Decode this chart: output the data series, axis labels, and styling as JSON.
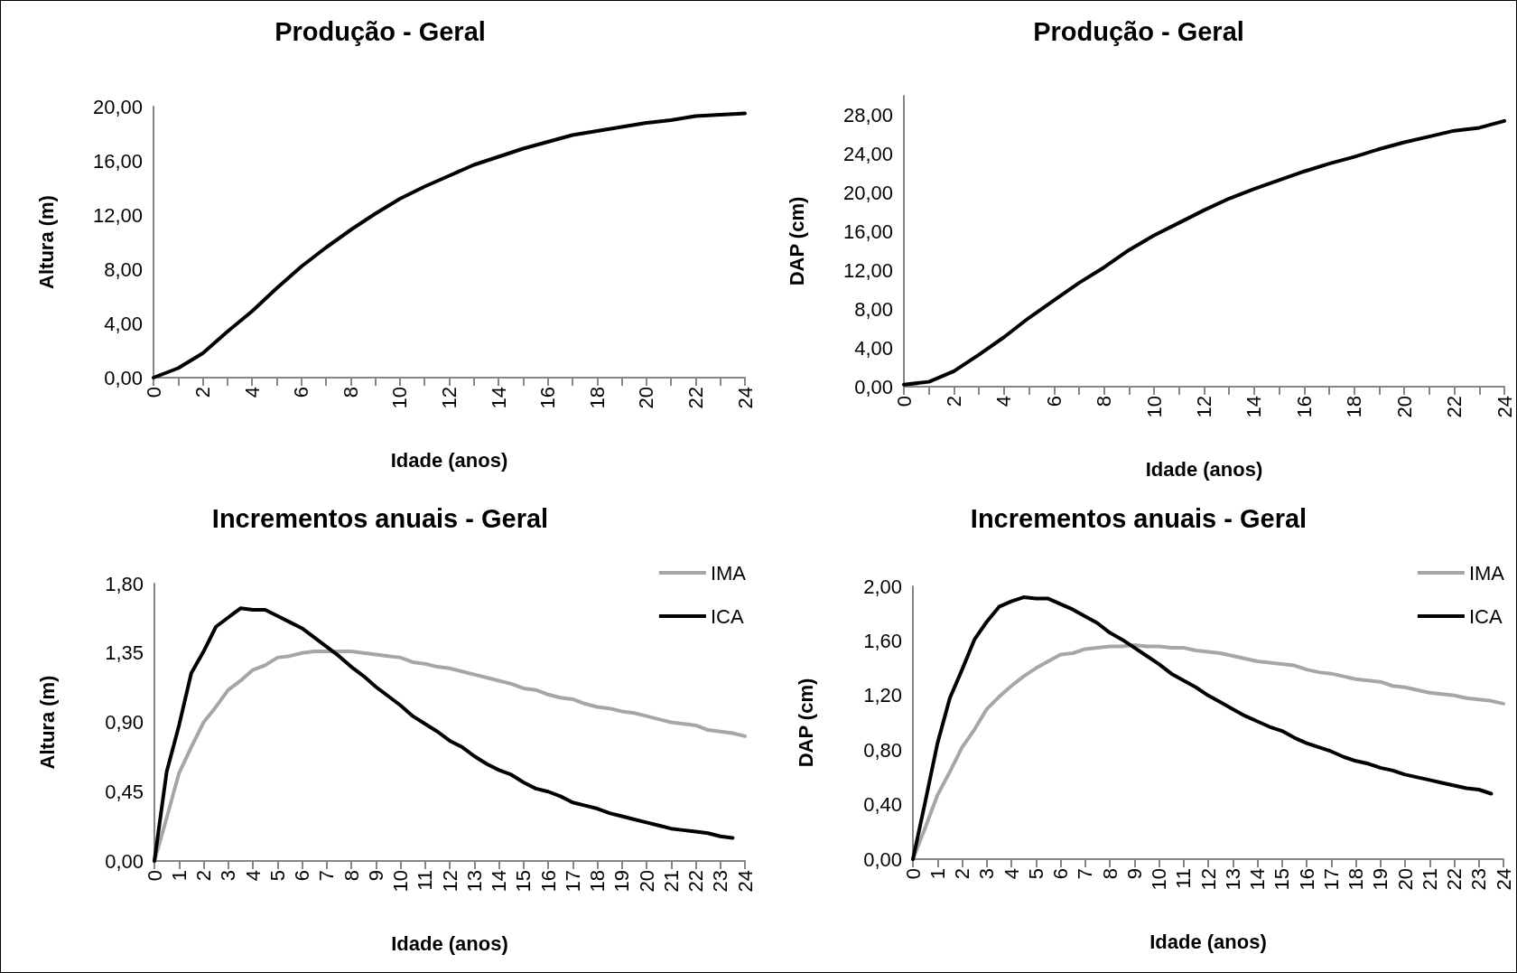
{
  "chart_data": [
    {
      "type": "line",
      "title": "Produção - Geral",
      "xlabel": "Idade (anos)",
      "ylabel": "Altura (m)",
      "x": [
        0,
        1,
        2,
        3,
        4,
        5,
        6,
        7,
        8,
        9,
        10,
        11,
        12,
        13,
        14,
        15,
        16,
        17,
        18,
        19,
        20,
        21,
        22,
        23,
        24
      ],
      "series": [
        {
          "color": "#000000",
          "values": [
            0,
            0.7,
            1.8,
            3.4,
            4.9,
            6.6,
            8.2,
            9.6,
            10.9,
            12.1,
            13.2,
            14.1,
            14.9,
            15.7,
            16.3,
            16.9,
            17.4,
            17.9,
            18.2,
            18.5,
            18.8,
            19.0,
            19.3,
            19.4,
            19.5
          ]
        }
      ],
      "xlim": [
        0,
        24
      ],
      "xticks": [
        0,
        {
          "value": 1,
          "label": null
        },
        2,
        {
          "value": 3,
          "label": null
        },
        4,
        {
          "value": 5,
          "label": null
        },
        6,
        {
          "value": 7,
          "label": null
        },
        8,
        {
          "value": 9,
          "label": null
        },
        10,
        {
          "value": 11,
          "label": null
        },
        12,
        {
          "value": 13,
          "label": null
        },
        14,
        {
          "value": 15,
          "label": null
        },
        16,
        {
          "value": 17,
          "label": null
        },
        18,
        {
          "value": 19,
          "label": null
        },
        20,
        {
          "value": 21,
          "label": null
        },
        22,
        {
          "value": 23,
          "label": null
        },
        24
      ],
      "ylim": [
        0,
        20
      ],
      "yticks": [
        {
          "value": 0,
          "label": "0,00"
        },
        {
          "value": 4,
          "label": "4,00"
        },
        {
          "value": 8,
          "label": "8,00"
        },
        {
          "value": 12,
          "label": "12,00"
        },
        {
          "value": 16,
          "label": "16,00"
        },
        {
          "value": 20,
          "label": "20,00"
        }
      ],
      "grid": false,
      "legend": false,
      "marker": "none",
      "line_style": "solid"
    },
    {
      "type": "line",
      "title": "Produção - Geral",
      "xlabel": "Idade (anos)",
      "ylabel": "DAP (cm)",
      "x": [
        0,
        1,
        2,
        3,
        4,
        5,
        6,
        7,
        8,
        9,
        10,
        11,
        12,
        13,
        14,
        15,
        16,
        17,
        18,
        19,
        20,
        21,
        22,
        23,
        24
      ],
      "series": [
        {
          "color": "#000000",
          "values": [
            0.2,
            0.5,
            1.6,
            3.3,
            5.1,
            7.1,
            8.9,
            10.7,
            12.3,
            14.1,
            15.6,
            16.9,
            18.2,
            19.4,
            20.4,
            21.3,
            22.2,
            23.0,
            23.7,
            24.5,
            25.2,
            25.8,
            26.4,
            26.7,
            27.4
          ]
        }
      ],
      "xlim": [
        0,
        24
      ],
      "xticks": [
        0,
        {
          "value": 1,
          "label": null
        },
        2,
        {
          "value": 3,
          "label": null
        },
        4,
        {
          "value": 5,
          "label": null
        },
        6,
        {
          "value": 7,
          "label": null
        },
        8,
        {
          "value": 9,
          "label": null
        },
        10,
        {
          "value": 11,
          "label": null
        },
        12,
        {
          "value": 13,
          "label": null
        },
        14,
        {
          "value": 15,
          "label": null
        },
        16,
        {
          "value": 17,
          "label": null
        },
        18,
        {
          "value": 19,
          "label": null
        },
        20,
        {
          "value": 21,
          "label": null
        },
        22,
        {
          "value": 23,
          "label": null
        },
        24
      ],
      "ylim": [
        0,
        30
      ],
      "yticks": [
        {
          "value": 0,
          "label": "0,00"
        },
        {
          "value": 4,
          "label": "4,00"
        },
        {
          "value": 8,
          "label": "8,00"
        },
        {
          "value": 12,
          "label": "12,00"
        },
        {
          "value": 16,
          "label": "16,00"
        },
        {
          "value": 20,
          "label": "20,00"
        },
        {
          "value": 24,
          "label": "24,00"
        },
        {
          "value": 28,
          "label": "28,00"
        }
      ],
      "grid": false,
      "legend": false,
      "marker": "none",
      "line_style": "solid"
    },
    {
      "type": "line",
      "title": "Incrementos anuais - Geral",
      "xlabel": "Idade (anos)",
      "ylabel": "Altura (m)",
      "series": [
        {
          "name": "IMA",
          "color": "#a6a6a6",
          "x": [
            0,
            0.5,
            1,
            1.5,
            2,
            2.5,
            3,
            3.5,
            4,
            4.5,
            5,
            5.5,
            6,
            6.5,
            7,
            7.5,
            8,
            8.5,
            9,
            9.5,
            10,
            10.5,
            11,
            11.5,
            12,
            12.5,
            13,
            13.5,
            14,
            14.5,
            15,
            15.5,
            16,
            16.5,
            17,
            17.5,
            18,
            18.5,
            19,
            19.5,
            20,
            20.5,
            21,
            21.5,
            22,
            22.5,
            23,
            23.5,
            24
          ],
          "values": [
            0,
            0.28,
            0.57,
            0.74,
            0.9,
            1.0,
            1.11,
            1.17,
            1.24,
            1.27,
            1.32,
            1.33,
            1.35,
            1.36,
            1.36,
            1.36,
            1.36,
            1.35,
            1.34,
            1.33,
            1.32,
            1.29,
            1.28,
            1.26,
            1.25,
            1.23,
            1.21,
            1.19,
            1.17,
            1.15,
            1.12,
            1.11,
            1.08,
            1.06,
            1.05,
            1.02,
            1.0,
            0.99,
            0.97,
            0.96,
            0.94,
            0.92,
            0.9,
            0.89,
            0.88,
            0.85,
            0.84,
            0.83,
            0.81
          ]
        },
        {
          "name": "ICA",
          "color": "#000000",
          "x": [
            0,
            0.5,
            1,
            1.5,
            2,
            2.5,
            3,
            3.5,
            4,
            4.5,
            5,
            5.5,
            6,
            6.5,
            7,
            7.5,
            8,
            8.5,
            9,
            9.5,
            10,
            10.5,
            11,
            11.5,
            12,
            12.5,
            13,
            13.5,
            14,
            14.5,
            15,
            15.5,
            16,
            16.5,
            17,
            17.5,
            18,
            18.5,
            19,
            19.5,
            20,
            20.5,
            21,
            21.5,
            22,
            22.5,
            23,
            23.5
          ],
          "values": [
            0,
            0.58,
            0.88,
            1.22,
            1.36,
            1.52,
            1.58,
            1.64,
            1.63,
            1.63,
            1.59,
            1.55,
            1.51,
            1.45,
            1.39,
            1.33,
            1.26,
            1.2,
            1.13,
            1.07,
            1.01,
            0.94,
            0.89,
            0.84,
            0.78,
            0.74,
            0.68,
            0.63,
            0.59,
            0.56,
            0.51,
            0.47,
            0.45,
            0.42,
            0.38,
            0.36,
            0.34,
            0.31,
            0.29,
            0.27,
            0.25,
            0.23,
            0.21,
            0.2,
            0.19,
            0.18,
            0.16,
            0.15
          ]
        }
      ],
      "xlim": [
        0,
        24
      ],
      "xticks": [
        0,
        1,
        2,
        3,
        4,
        5,
        6,
        7,
        8,
        9,
        10,
        11,
        12,
        13,
        14,
        15,
        16,
        17,
        18,
        19,
        20,
        21,
        22,
        23,
        24
      ],
      "ylim": [
        0,
        1.8
      ],
      "yticks": [
        {
          "value": 0,
          "label": "0,00"
        },
        {
          "value": 0.45,
          "label": "0,45"
        },
        {
          "value": 0.9,
          "label": "0,90"
        },
        {
          "value": 1.35,
          "label": "1,35"
        },
        {
          "value": 1.8,
          "label": "1,80"
        }
      ],
      "grid": false,
      "legend": "top right",
      "marker": "none",
      "line_style": "solid"
    },
    {
      "type": "line",
      "title": "Incrementos anuais - Geral",
      "xlabel": "Idade (anos)",
      "ylabel": "DAP (cm)",
      "series": [
        {
          "name": "IMA",
          "color": "#a6a6a6",
          "x": [
            0,
            0.5,
            1,
            1.5,
            2,
            2.5,
            3,
            3.5,
            4,
            4.5,
            5,
            5.5,
            6,
            6.5,
            7,
            7.5,
            8,
            8.5,
            9,
            9.5,
            10,
            10.5,
            11,
            11.5,
            12,
            12.5,
            13,
            13.5,
            14,
            14.5,
            15,
            15.5,
            16,
            16.5,
            17,
            17.5,
            18,
            18.5,
            19,
            19.5,
            20,
            20.5,
            21,
            21.5,
            22,
            22.5,
            23,
            23.5,
            24
          ],
          "values": [
            0,
            0.23,
            0.47,
            0.64,
            0.82,
            0.95,
            1.1,
            1.19,
            1.27,
            1.34,
            1.4,
            1.45,
            1.5,
            1.51,
            1.54,
            1.55,
            1.56,
            1.56,
            1.57,
            1.56,
            1.56,
            1.55,
            1.55,
            1.53,
            1.52,
            1.51,
            1.49,
            1.47,
            1.45,
            1.44,
            1.43,
            1.42,
            1.39,
            1.37,
            1.36,
            1.34,
            1.32,
            1.31,
            1.3,
            1.27,
            1.26,
            1.24,
            1.22,
            1.21,
            1.2,
            1.18,
            1.17,
            1.16,
            1.14
          ]
        },
        {
          "name": "ICA",
          "color": "#000000",
          "x": [
            0,
            0.5,
            1,
            1.5,
            2,
            2.5,
            3,
            3.5,
            4,
            4.5,
            5,
            5.5,
            6,
            6.5,
            7,
            7.5,
            8,
            8.5,
            9,
            9.5,
            10,
            10.5,
            11,
            11.5,
            12,
            12.5,
            13,
            13.5,
            14,
            14.5,
            15,
            15.5,
            16,
            16.5,
            17,
            17.5,
            18,
            18.5,
            19,
            19.5,
            20,
            20.5,
            21,
            21.5,
            22,
            22.5,
            23,
            23.5
          ],
          "values": [
            0,
            0.42,
            0.85,
            1.18,
            1.39,
            1.61,
            1.74,
            1.85,
            1.89,
            1.92,
            1.91,
            1.91,
            1.87,
            1.83,
            1.78,
            1.73,
            1.66,
            1.61,
            1.55,
            1.49,
            1.43,
            1.36,
            1.31,
            1.26,
            1.2,
            1.15,
            1.1,
            1.05,
            1.01,
            0.97,
            0.94,
            0.89,
            0.85,
            0.82,
            0.79,
            0.75,
            0.72,
            0.7,
            0.67,
            0.65,
            0.62,
            0.6,
            0.58,
            0.56,
            0.54,
            0.52,
            0.51,
            0.48
          ]
        }
      ],
      "xlim": [
        0,
        24
      ],
      "xticks": [
        0,
        1,
        2,
        3,
        4,
        5,
        6,
        7,
        8,
        9,
        10,
        11,
        12,
        13,
        14,
        15,
        16,
        17,
        18,
        19,
        20,
        21,
        22,
        23,
        24
      ],
      "ylim": [
        0,
        2
      ],
      "yticks": [
        {
          "value": 0,
          "label": "0,00"
        },
        {
          "value": 0.4,
          "label": "0,40"
        },
        {
          "value": 0.8,
          "label": "0,80"
        },
        {
          "value": 1.2,
          "label": "1,20"
        },
        {
          "value": 1.6,
          "label": "1,60"
        },
        {
          "value": 2,
          "label": "2,00"
        }
      ],
      "grid": false,
      "legend": "top right",
      "marker": "none",
      "line_style": "solid"
    }
  ]
}
